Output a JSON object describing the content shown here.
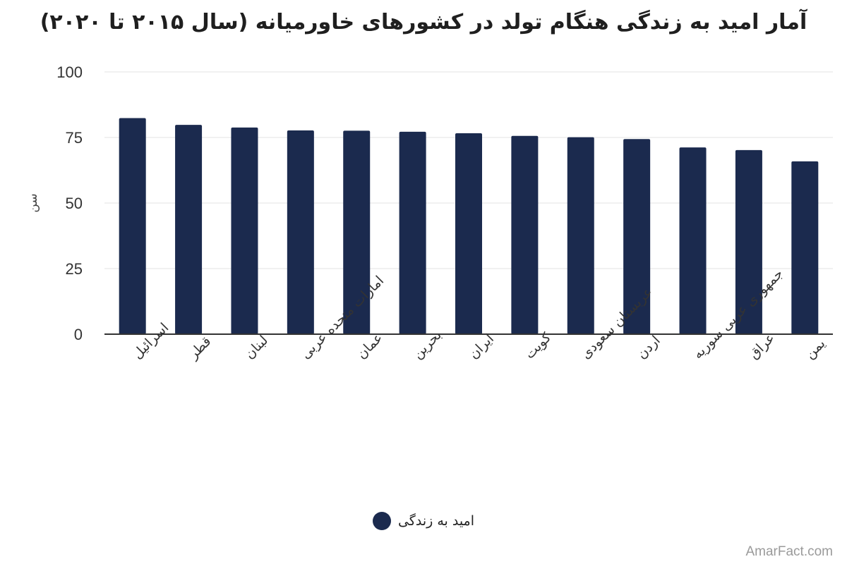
{
  "chart_data": {
    "type": "bar",
    "title": "آمار امید به زندگی هنگام تولد در کشورهای خاورمیانه (سال ۲۰۱۵ تا ۲۰۲۰)",
    "ylabel": "سن",
    "xlabel": "",
    "ylim": [
      0,
      100
    ],
    "yticks": [
      "100",
      "75",
      "50",
      "25",
      "0"
    ],
    "ytick_values": [
      100,
      75,
      50,
      25,
      0
    ],
    "grid": true,
    "legend_position": "bottom",
    "categories": [
      "اسرائیل",
      "قطر",
      "لبنان",
      "امارات متحده عربی",
      "عمان",
      "بحرین",
      "ایران",
      "کویت",
      "عربستان سعودی",
      "اردن",
      "جمهوری عربی سوریه",
      "عراق",
      "یمن"
    ],
    "series": [
      {
        "name": "امید به زندگی",
        "color": "#1b2a4e",
        "values": [
          82.4,
          79.8,
          78.8,
          77.7,
          77.6,
          77.2,
          76.6,
          75.6,
          75.1,
          74.4,
          71.2,
          70.2,
          65.9
        ]
      }
    ]
  },
  "watermark": "AmarFact.com"
}
